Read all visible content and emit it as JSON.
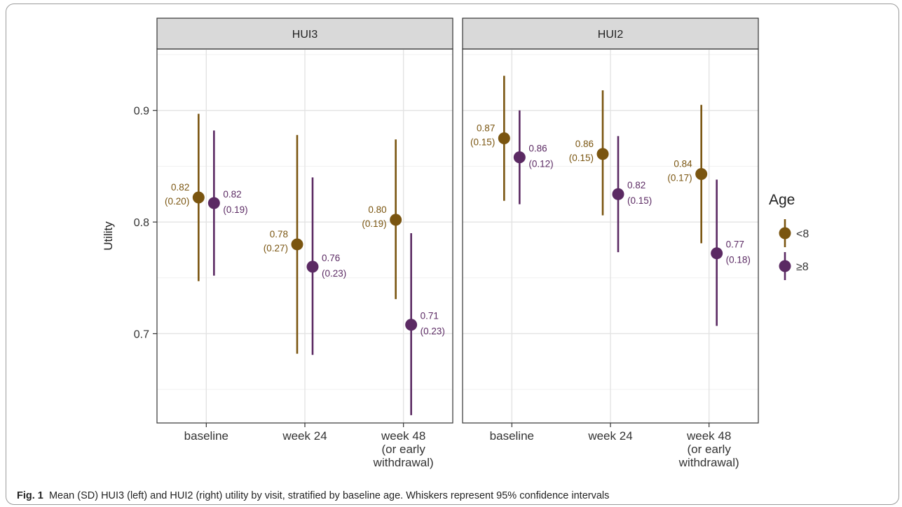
{
  "chart_data": {
    "type": "scatter",
    "ylabel": "Utility",
    "ylim": [
      0.62,
      0.955
    ],
    "yticks": [
      0.7,
      0.8,
      0.9
    ],
    "ytick_labels": [
      "0.7",
      "0.8",
      "0.9"
    ],
    "categories": [
      "baseline",
      "week 24",
      "week 48\n(or early\nwithdrawal)"
    ],
    "grid": true,
    "legend": {
      "title": "Age",
      "position": "right",
      "entries": [
        "<8",
        "≥8"
      ]
    },
    "colors": {
      "<8": "#7a5510",
      "≥8": "#5b2a63"
    },
    "panels": [
      {
        "name": "HUI3",
        "series": [
          {
            "name": "<8",
            "points": [
              {
                "x": "baseline",
                "y": 0.822,
                "lower": 0.747,
                "upper": 0.897,
                "label_mean": "0.82",
                "label_sd": "(0.20)"
              },
              {
                "x": "week 24",
                "y": 0.78,
                "lower": 0.682,
                "upper": 0.878,
                "label_mean": "0.78",
                "label_sd": "(0.27)"
              },
              {
                "x": "week 48\n(or early\nwithdrawal)",
                "y": 0.802,
                "lower": 0.731,
                "upper": 0.874,
                "label_mean": "0.80",
                "label_sd": "(0.19)"
              }
            ]
          },
          {
            "name": "≥8",
            "points": [
              {
                "x": "baseline",
                "y": 0.817,
                "lower": 0.752,
                "upper": 0.882,
                "label_mean": "0.82",
                "label_sd": "(0.19)"
              },
              {
                "x": "week 24",
                "y": 0.76,
                "lower": 0.681,
                "upper": 0.84,
                "label_mean": "0.76",
                "label_sd": "(0.23)"
              },
              {
                "x": "week 48\n(or early\nwithdrawal)",
                "y": 0.708,
                "lower": 0.627,
                "upper": 0.79,
                "label_mean": "0.71",
                "label_sd": "(0.23)"
              }
            ]
          }
        ]
      },
      {
        "name": "HUI2",
        "series": [
          {
            "name": "<8",
            "points": [
              {
                "x": "baseline",
                "y": 0.875,
                "lower": 0.819,
                "upper": 0.931,
                "label_mean": "0.87",
                "label_sd": "(0.15)"
              },
              {
                "x": "week 24",
                "y": 0.861,
                "lower": 0.806,
                "upper": 0.918,
                "label_mean": "0.86",
                "label_sd": "(0.15)"
              },
              {
                "x": "week 48\n(or early\nwithdrawal)",
                "y": 0.843,
                "lower": 0.781,
                "upper": 0.905,
                "label_mean": "0.84",
                "label_sd": "(0.17)"
              }
            ]
          },
          {
            "name": "≥8",
            "points": [
              {
                "x": "baseline",
                "y": 0.858,
                "lower": 0.816,
                "upper": 0.9,
                "label_mean": "0.86",
                "label_sd": "(0.12)"
              },
              {
                "x": "week 24",
                "y": 0.825,
                "lower": 0.773,
                "upper": 0.877,
                "label_mean": "0.82",
                "label_sd": "(0.15)"
              },
              {
                "x": "week 48\n(or early\nwithdrawal)",
                "y": 0.772,
                "lower": 0.707,
                "upper": 0.838,
                "label_mean": "0.77",
                "label_sd": "(0.18)"
              }
            ]
          }
        ]
      }
    ]
  },
  "caption": {
    "label": "Fig. 1",
    "text": "Mean (SD) HUI3 (left) and HUI2 (right) utility by visit, stratified by baseline age. Whiskers represent 95% confidence intervals"
  }
}
